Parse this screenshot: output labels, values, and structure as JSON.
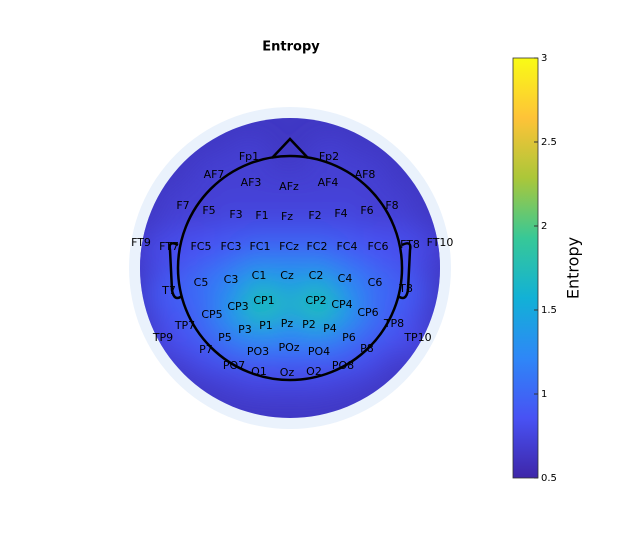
{
  "chart_data": {
    "type": "topoplot",
    "title": "Entropy",
    "colorbar_label": "Entropy",
    "colormap": "parula",
    "clim": [
      0.5,
      3
    ],
    "cticks": [
      0.5,
      1,
      1.5,
      2,
      2.5,
      3
    ],
    "channels": [
      "Fp1",
      "Fp2",
      "AF7",
      "AF3",
      "AFz",
      "AF4",
      "AF8",
      "F7",
      "F5",
      "F3",
      "F1",
      "Fz",
      "F2",
      "F4",
      "F6",
      "F8",
      "FT9",
      "FT7",
      "FC5",
      "FC3",
      "FC1",
      "FCz",
      "FC2",
      "FC4",
      "FC6",
      "FT8",
      "FT10",
      "T7",
      "C5",
      "C3",
      "C1",
      "Cz",
      "C2",
      "C4",
      "C6",
      "T8",
      "CP5",
      "CP3",
      "CP1",
      "CP2",
      "CP4",
      "CP6",
      "TP7",
      "TP8",
      "TP9",
      "TP10",
      "P3",
      "P1",
      "Pz",
      "P2",
      "P4",
      "P5",
      "P6",
      "P7",
      "P8",
      "PO3",
      "POz",
      "PO4",
      "PO7",
      "PO8",
      "O1",
      "Oz",
      "O2"
    ],
    "values": [
      0.7,
      0.7,
      0.7,
      0.7,
      0.7,
      0.7,
      0.7,
      0.7,
      0.7,
      0.75,
      0.75,
      0.75,
      0.75,
      0.75,
      0.7,
      0.7,
      0.65,
      0.8,
      0.85,
      0.9,
      0.95,
      0.95,
      0.95,
      0.9,
      0.85,
      0.8,
      0.65,
      0.9,
      1.0,
      1.15,
      1.3,
      1.3,
      1.3,
      1.15,
      1.0,
      0.9,
      1.0,
      1.3,
      1.7,
      1.7,
      1.3,
      1.0,
      0.85,
      0.85,
      0.7,
      0.7,
      1.1,
      1.2,
      1.2,
      1.2,
      1.1,
      0.9,
      0.9,
      0.8,
      0.8,
      0.85,
      0.9,
      0.85,
      0.75,
      0.75,
      0.75,
      0.75,
      0.75
    ]
  }
}
